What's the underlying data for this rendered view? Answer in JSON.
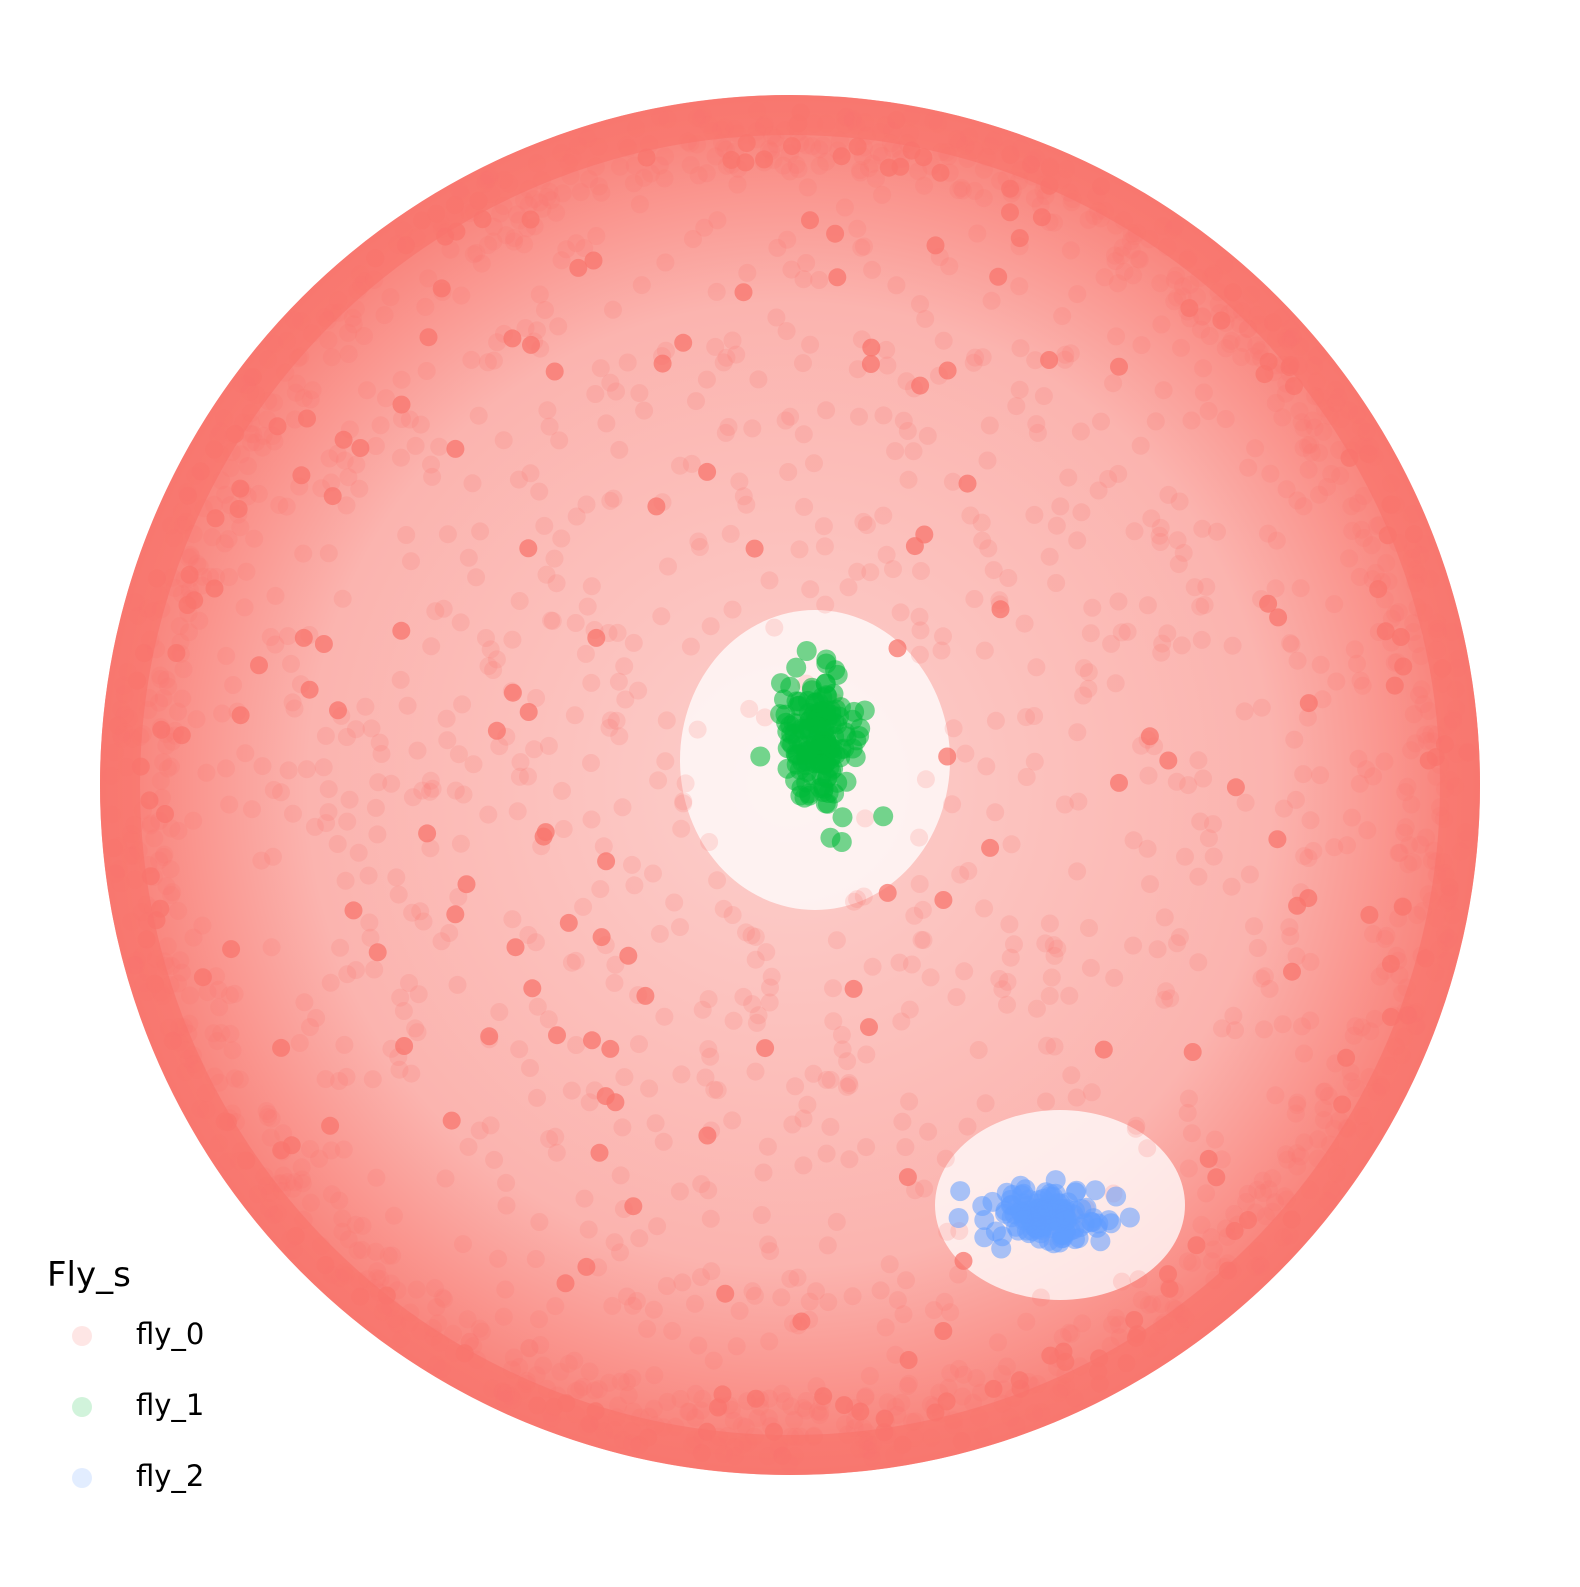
{
  "chart_data": {
    "type": "scatter",
    "title": "",
    "xlabel": "",
    "ylabel": "",
    "grid": false,
    "axes_visible": false,
    "legend": {
      "title": "Fly_s",
      "placement": "bottom-left"
    },
    "series": [
      {
        "name": "fly_0",
        "color": "#F8766D",
        "description_of_extent": "dense ring of trajectory points filling a circular arena, with sparse holes around two food spots"
      },
      {
        "name": "fly_1",
        "color": "#00BA38",
        "description_of_extent": "compact cluster near the upper-center food spot"
      },
      {
        "name": "fly_2",
        "color": "#619CFF",
        "description_of_extent": "compact cluster near the lower-right food spot"
      }
    ]
  }
}
